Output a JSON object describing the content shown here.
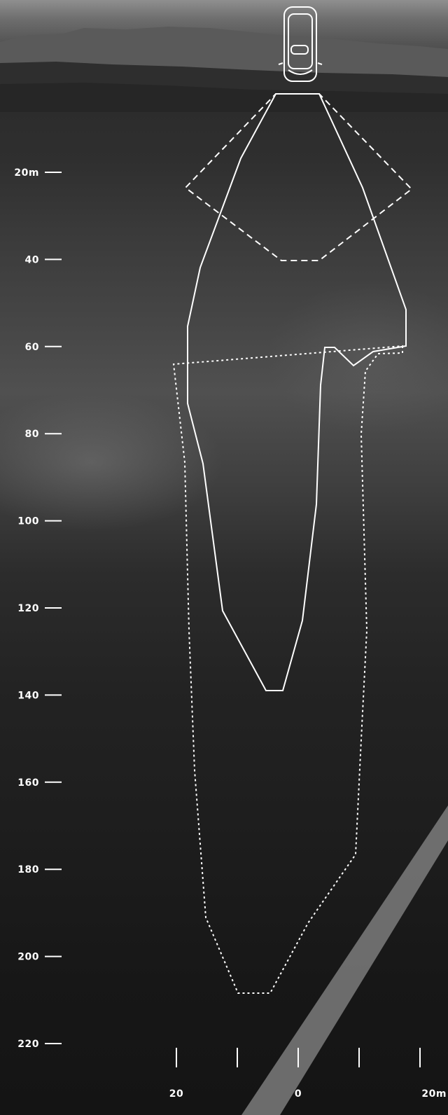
{
  "y_axis": {
    "ticks": [
      {
        "label": "20m",
        "value": 20
      },
      {
        "label": "40",
        "value": 40
      },
      {
        "label": "60",
        "value": 60
      },
      {
        "label": "80",
        "value": 80
      },
      {
        "label": "100",
        "value": 100
      },
      {
        "label": "120",
        "value": 120
      },
      {
        "label": "140",
        "value": 140
      },
      {
        "label": "160",
        "value": 160
      },
      {
        "label": "180",
        "value": 180
      },
      {
        "label": "200",
        "value": 200
      },
      {
        "label": "220",
        "value": 220
      }
    ]
  },
  "x_axis": {
    "ticks": [
      {
        "label": "20",
        "value": -20
      },
      {
        "label": "",
        "value": -10
      },
      {
        "label": "0",
        "value": 0
      },
      {
        "label": "",
        "value": 10
      },
      {
        "label": "20m",
        "value": 20
      }
    ]
  },
  "colors": {
    "line": "#ffffff",
    "background_dark": "#141414"
  },
  "icons": {
    "vehicle": "car-top-view-icon"
  }
}
